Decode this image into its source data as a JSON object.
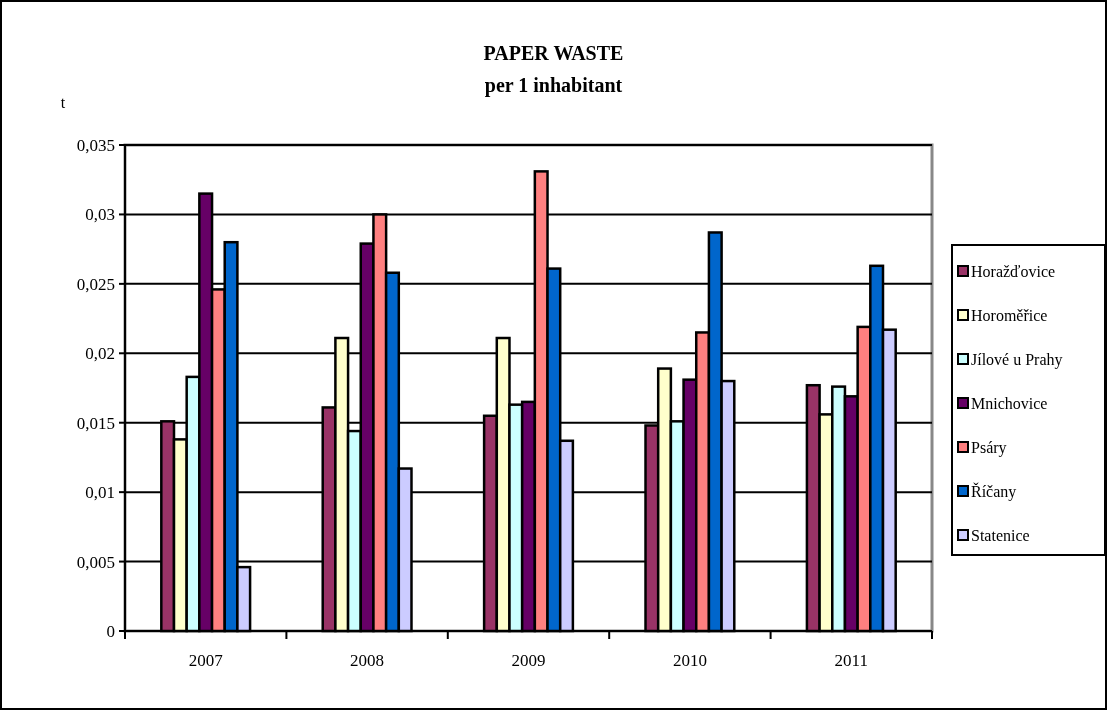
{
  "chart_data": {
    "type": "bar",
    "title": "PAPER WASTE",
    "subtitle": "per 1 inhabitant",
    "ylabel": "t",
    "categories": [
      "2007",
      "2008",
      "2009",
      "2010",
      "2011"
    ],
    "series": [
      {
        "name": "Horažďovice",
        "color": "#993366",
        "values": [
          0.0151,
          0.0161,
          0.0155,
          0.0148,
          0.0177
        ]
      },
      {
        "name": "Horoměřice",
        "color": "#ffffcc",
        "values": [
          0.0138,
          0.0211,
          0.0211,
          0.0189,
          0.0156
        ]
      },
      {
        "name": "Jílové u Prahy",
        "color": "#ccffff",
        "values": [
          0.0183,
          0.0144,
          0.0163,
          0.0151,
          0.0176
        ]
      },
      {
        "name": "Mnichovice",
        "color": "#660066",
        "values": [
          0.0315,
          0.0279,
          0.0165,
          0.0181,
          0.0169
        ]
      },
      {
        "name": "Psáry",
        "color": "#ff8080",
        "values": [
          0.0246,
          0.03,
          0.0331,
          0.0215,
          0.0219
        ]
      },
      {
        "name": "Říčany",
        "color": "#0066cc",
        "values": [
          0.028,
          0.0258,
          0.0261,
          0.0287,
          0.0263
        ]
      },
      {
        "name": "Statenice",
        "color": "#ccccff",
        "values": [
          0.0046,
          0.0117,
          0.0137,
          0.018,
          0.0217
        ]
      }
    ],
    "ylim": [
      0,
      0.035
    ],
    "yticks": [
      0,
      {
        "value": 0.005,
        "label": "0,005"
      },
      {
        "value": 0.01,
        "label": "0,01"
      },
      {
        "value": 0.015,
        "label": "0,015"
      },
      {
        "value": 0.02,
        "label": "0,02"
      },
      {
        "value": 0.025,
        "label": "0,025"
      },
      {
        "value": 0.03,
        "label": "0,03"
      },
      {
        "value": 0.035,
        "label": "0,035"
      }
    ],
    "grid": "y",
    "legend": "right"
  }
}
